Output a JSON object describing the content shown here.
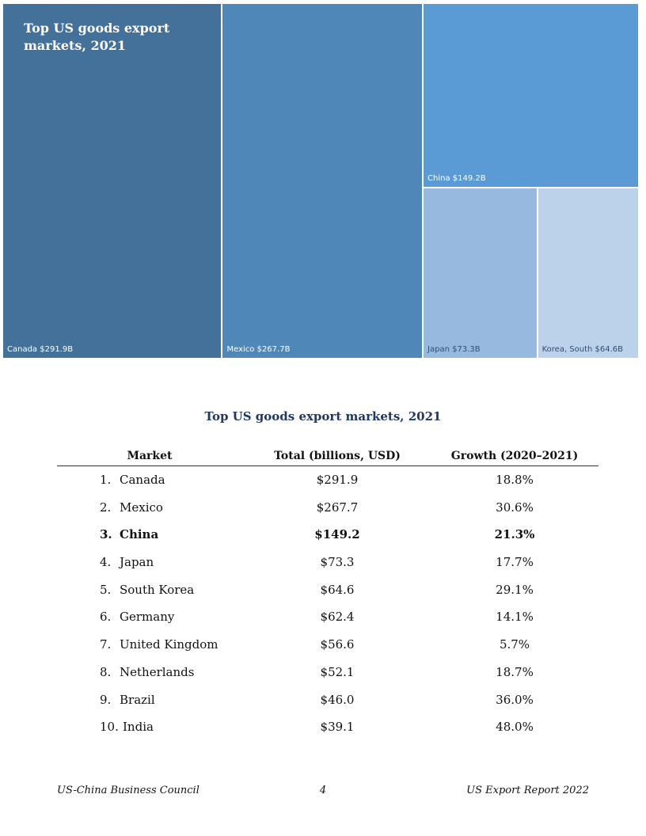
{
  "chart_data": {
    "type": "treemap",
    "title": "Top US goods export markets, 2021",
    "units": "billions USD",
    "items": [
      {
        "label": "Canada $291.9B",
        "name": "Canada",
        "value": 291.9,
        "color": "#44719a"
      },
      {
        "label": "Mexico $267.7B",
        "name": "Mexico",
        "value": 267.7,
        "color": "#4f87b8"
      },
      {
        "label": "China $149.2B",
        "name": "China",
        "value": 149.2,
        "color": "#5a9bd5"
      },
      {
        "label": "Japan $73.3B",
        "name": "Japan",
        "value": 73.3,
        "color": "#98b9df"
      },
      {
        "label": "Korea, South $64.6B",
        "name": "Korea, South",
        "value": 64.6,
        "color": "#bcd1ea"
      }
    ]
  },
  "table": {
    "title": "Top US goods export markets, 2021",
    "headers": {
      "market": "Market",
      "total": "Total (billions, USD)",
      "growth": "Growth (2020–2021)"
    },
    "rows": [
      {
        "rank": "1.",
        "market": "Canada",
        "total": "$291.9",
        "growth": "18.8%",
        "highlight": false
      },
      {
        "rank": "2.",
        "market": "Mexico",
        "total": "$267.7",
        "growth": "30.6%",
        "highlight": false
      },
      {
        "rank": "3.",
        "market": "China",
        "total": "$149.2",
        "growth": "21.3%",
        "highlight": true
      },
      {
        "rank": "4.",
        "market": "Japan",
        "total": "$73.3",
        "growth": "17.7%",
        "highlight": false
      },
      {
        "rank": "5.",
        "market": "South Korea",
        "total": "$64.6",
        "growth": "29.1%",
        "highlight": false
      },
      {
        "rank": "6.",
        "market": "Germany",
        "total": "$62.4",
        "growth": "14.1%",
        "highlight": false
      },
      {
        "rank": "7.",
        "market": "United Kingdom",
        "total": "$56.6",
        "growth": "5.7%",
        "highlight": false
      },
      {
        "rank": "8.",
        "market": "Netherlands",
        "total": "$52.1",
        "growth": "18.7%",
        "highlight": false
      },
      {
        "rank": "9.",
        "market": "Brazil",
        "total": "$46.0",
        "growth": "36.0%",
        "highlight": false
      },
      {
        "rank": "10.",
        "market": "India",
        "total": "$39.1",
        "growth": "48.0%",
        "highlight": false
      }
    ]
  },
  "footer": {
    "left": "US-China Business Council",
    "page": "4",
    "right": "US Export Report 2022"
  }
}
